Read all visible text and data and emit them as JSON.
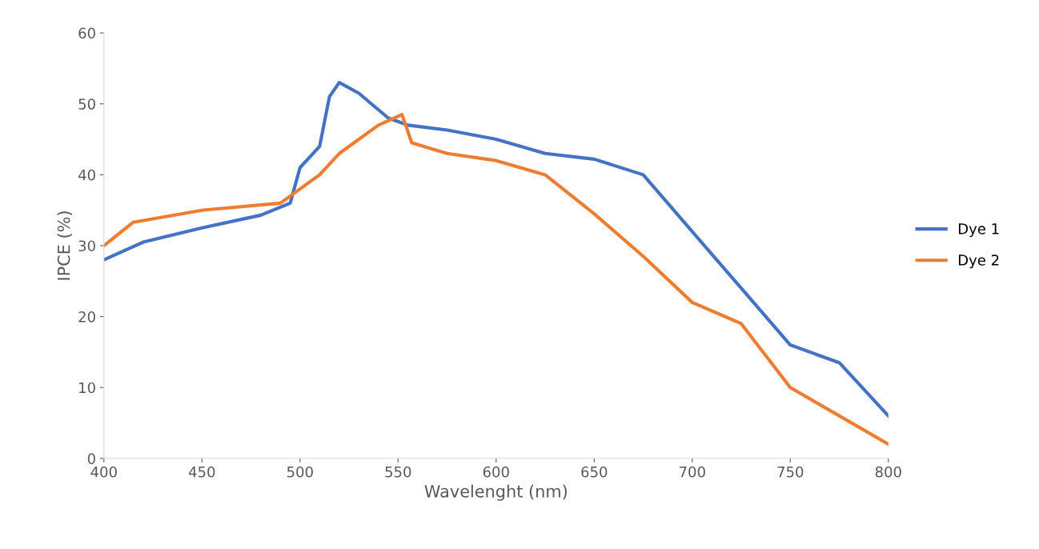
{
  "chart_data": {
    "type": "line",
    "xlabel": "Wavelenght (nm)",
    "ylabel": "IPCE (%)",
    "xlim": [
      400,
      800
    ],
    "xticks": [
      400,
      450,
      500,
      550,
      600,
      650,
      700,
      750,
      800
    ],
    "ylim": [
      0,
      60
    ],
    "yticks": [
      0,
      10,
      20,
      30,
      40,
      50,
      60
    ],
    "grid": false,
    "legend": "right",
    "marker": "none",
    "line_style": "solid",
    "series": [
      {
        "name": "Dye 1",
        "color": "#4472c4",
        "x": [
          400,
          420,
          450,
          480,
          495,
          500,
          510,
          515,
          520,
          530,
          545,
          555,
          575,
          600,
          625,
          650,
          675,
          700,
          725,
          750,
          775,
          800
        ],
        "values": [
          28,
          30.5,
          32.5,
          34.3,
          36,
          41,
          44,
          51,
          53,
          51.5,
          48,
          47,
          46.3,
          45,
          43,
          42.2,
          40,
          32,
          24,
          16,
          13.5,
          6
        ]
      },
      {
        "name": "Dye 2",
        "color": "#ed7d31",
        "x": [
          400,
          415,
          450,
          490,
          500,
          510,
          520,
          540,
          552,
          557,
          575,
          600,
          625,
          650,
          675,
          700,
          725,
          750,
          775,
          800
        ],
        "values": [
          30,
          33.3,
          35,
          36,
          38,
          40,
          43,
          47,
          48.5,
          44.5,
          43,
          42,
          40,
          34.5,
          28.5,
          22,
          19,
          10,
          6,
          2
        ]
      }
    ]
  }
}
